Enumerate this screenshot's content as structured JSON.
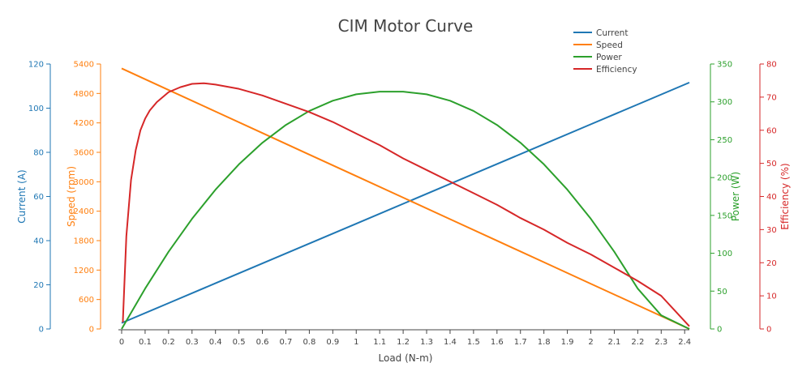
{
  "chart_data": {
    "type": "line",
    "title": "CIM Motor Curve",
    "xlabel": "Load (N-m)",
    "x_axis": {
      "range": [
        0,
        2.42
      ],
      "ticks": [
        0,
        0.1,
        0.2,
        0.3,
        0.4,
        0.5,
        0.6,
        0.7,
        0.8,
        0.9,
        1,
        1.1,
        1.2,
        1.3,
        1.4,
        1.5,
        1.6,
        1.7,
        1.8,
        1.9,
        2,
        2.1,
        2.2,
        2.3,
        2.4
      ],
      "tick_labels": [
        "0",
        "0.1",
        "0.2",
        "0.3",
        "0.4",
        "0.5",
        "0.6",
        "0.7",
        "0.8",
        "0.9",
        "1",
        "1.1",
        "1.2",
        "1.3",
        "1.4",
        "1.5",
        "1.6",
        "1.7",
        "1.8",
        "1.9",
        "2",
        "2.1",
        "2.2",
        "2.3",
        "2.4"
      ]
    },
    "y_axes": [
      {
        "id": "current",
        "label": "Current (A)",
        "color": "#1f77b4",
        "range": [
          0,
          120
        ],
        "ticks": [
          0,
          20,
          40,
          60,
          80,
          100,
          120
        ],
        "tick_labels": [
          "0",
          "20",
          "40",
          "60",
          "80",
          "100",
          "120"
        ],
        "side": "left",
        "order": 0
      },
      {
        "id": "speed",
        "label": "Speed (rpm)",
        "color": "#ff7f0e",
        "range": [
          0,
          5400
        ],
        "ticks": [
          0,
          600,
          1200,
          1800,
          2400,
          3000,
          3600,
          4200,
          4800,
          5400
        ],
        "tick_labels": [
          "0",
          "600",
          "1200",
          "1800",
          "2400",
          "3000",
          "3600",
          "4200",
          "4800",
          "5400"
        ],
        "side": "left",
        "order": 1
      },
      {
        "id": "power",
        "label": "Power (W)",
        "color": "#2ca02c",
        "range": [
          0,
          350
        ],
        "ticks": [
          0,
          50,
          100,
          150,
          200,
          250,
          300,
          350
        ],
        "tick_labels": [
          "0",
          "50",
          "100",
          "150",
          "200",
          "250",
          "300",
          "350"
        ],
        "side": "right",
        "order": 0
      },
      {
        "id": "efficiency",
        "label": "Efficiency (%)",
        "color": "#d62728",
        "range": [
          0,
          80
        ],
        "ticks": [
          0,
          10,
          20,
          30,
          40,
          50,
          60,
          70,
          80
        ],
        "tick_labels": [
          "0",
          "10",
          "20",
          "30",
          "40",
          "50",
          "60",
          "70",
          "80"
        ],
        "side": "right",
        "order": 1
      }
    ],
    "legend": {
      "placement": "top-right",
      "entries": [
        "Current",
        "Speed",
        "Power",
        "Efficiency"
      ]
    },
    "grid": false,
    "series": [
      {
        "name": "Current",
        "axis": "current",
        "color": "#1f77b4",
        "x": [
          0,
          0.2,
          0.4,
          0.6,
          0.8,
          1.0,
          1.2,
          1.4,
          1.6,
          1.8,
          2.0,
          2.2,
          2.42
        ],
        "y": [
          2.7,
          11.7,
          20.7,
          29.7,
          38.7,
          47.7,
          56.7,
          65.7,
          74.7,
          83.7,
          92.7,
          101.7,
          111.6
        ]
      },
      {
        "name": "Speed",
        "axis": "speed",
        "color": "#ff7f0e",
        "x": [
          0,
          0.2,
          0.4,
          0.6,
          0.8,
          1.0,
          1.2,
          1.4,
          1.6,
          1.8,
          2.0,
          2.2,
          2.42
        ],
        "y": [
          5310,
          4871,
          4432,
          3993,
          3554,
          3116,
          2677,
          2238,
          1799,
          1360,
          921,
          483,
          0
        ]
      },
      {
        "name": "Power",
        "axis": "power",
        "color": "#2ca02c",
        "x": [
          0,
          0.1,
          0.2,
          0.3,
          0.4,
          0.5,
          0.6,
          0.7,
          0.8,
          0.9,
          1.0,
          1.1,
          1.2,
          1.3,
          1.4,
          1.5,
          1.6,
          1.7,
          1.8,
          1.9,
          2.0,
          2.1,
          2.2,
          2.3,
          2.42
        ],
        "y": [
          0,
          53.3,
          102.0,
          145.5,
          184.0,
          217.5,
          246.0,
          269.5,
          288.0,
          301.5,
          310.0,
          313.5,
          313.5,
          310.0,
          301.5,
          288.0,
          269.5,
          246.0,
          217.5,
          184.0,
          145.5,
          102.0,
          53.3,
          18.0,
          0
        ]
      },
      {
        "name": "Efficiency",
        "axis": "efficiency",
        "color": "#d62728",
        "x": [
          0.005,
          0.02,
          0.04,
          0.06,
          0.08,
          0.1,
          0.12,
          0.15,
          0.2,
          0.25,
          0.3,
          0.35,
          0.4,
          0.5,
          0.6,
          0.7,
          0.8,
          0.9,
          1.0,
          1.1,
          1.2,
          1.3,
          1.4,
          1.5,
          1.6,
          1.7,
          1.8,
          1.9,
          2.0,
          2.1,
          2.2,
          2.3,
          2.42
        ],
        "y": [
          2,
          28,
          45,
          54,
          60,
          63.5,
          66,
          68.5,
          71.5,
          73,
          74,
          74.2,
          73.8,
          72.5,
          70.5,
          68,
          65.5,
          62.5,
          59,
          55.5,
          51.5,
          48,
          44.5,
          41,
          37.5,
          33.5,
          30,
          26,
          22.5,
          18.5,
          14.5,
          10,
          0.8
        ]
      }
    ]
  }
}
